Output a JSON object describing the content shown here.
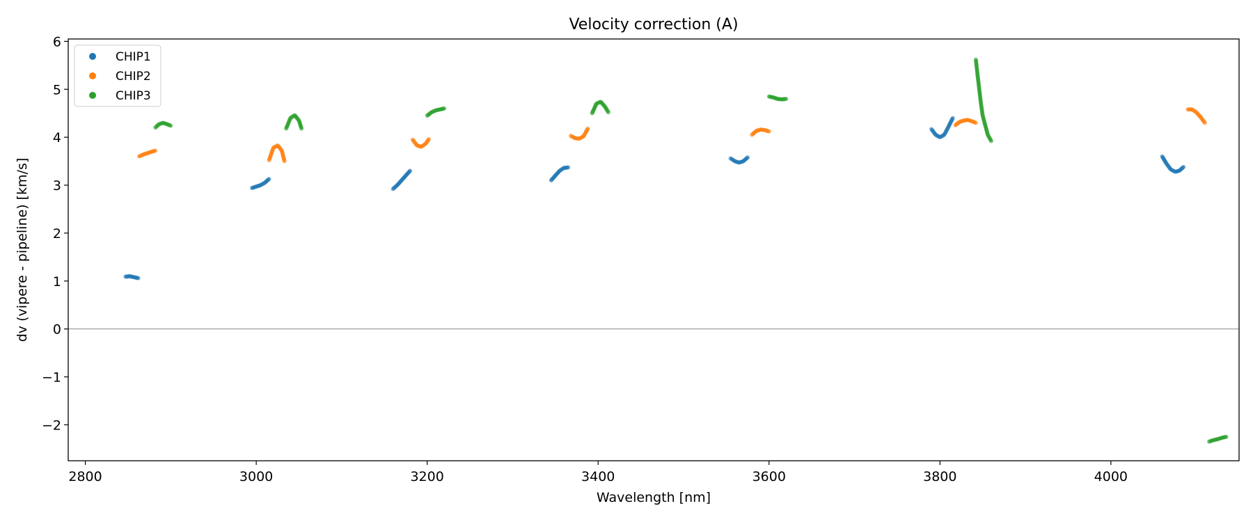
{
  "chart_data": {
    "type": "scatter",
    "title": "Velocity correction (A)",
    "xlabel": "Wavelength [nm]",
    "ylabel": "dv (vipere - pipeline) [km/s]",
    "xlim": [
      2780,
      4150
    ],
    "ylim": [
      -2.75,
      6.05
    ],
    "xticks": [
      2800,
      3000,
      3200,
      3400,
      3600,
      3800,
      4000
    ],
    "xtick_labels": [
      "2800",
      "3000",
      "3200",
      "3400",
      "3600",
      "3800",
      "4000"
    ],
    "yticks": [
      -2,
      -1,
      0,
      1,
      2,
      3,
      4,
      5,
      6
    ],
    "ytick_labels": [
      "−2",
      "−1",
      "0",
      "1",
      "2",
      "3",
      "4",
      "5",
      "6"
    ],
    "reference_line_y": 0,
    "grid": false,
    "legend_position": "top-left",
    "series": [
      {
        "name": "CHIP1",
        "color": "#1f77b4",
        "segments": [
          [
            [
              2847,
              1.09
            ],
            [
              2852,
              1.1
            ],
            [
              2857,
              1.08
            ],
            [
              2862,
              1.06
            ]
          ],
          [
            [
              2995,
              2.94
            ],
            [
              3000,
              2.97
            ],
            [
              3005,
              3.0
            ],
            [
              3010,
              3.05
            ],
            [
              3015,
              3.13
            ]
          ],
          [
            [
              3160,
              2.92
            ],
            [
              3165,
              3.0
            ],
            [
              3170,
              3.1
            ],
            [
              3175,
              3.2
            ],
            [
              3180,
              3.3
            ]
          ],
          [
            [
              3345,
              3.1
            ],
            [
              3350,
              3.2
            ],
            [
              3355,
              3.3
            ],
            [
              3360,
              3.36
            ],
            [
              3365,
              3.37
            ]
          ],
          [
            [
              3555,
              3.56
            ],
            [
              3560,
              3.5
            ],
            [
              3565,
              3.47
            ],
            [
              3570,
              3.5
            ],
            [
              3575,
              3.58
            ]
          ],
          [
            [
              3790,
              4.17
            ],
            [
              3795,
              4.05
            ],
            [
              3800,
              4.0
            ],
            [
              3805,
              4.05
            ],
            [
              3810,
              4.22
            ],
            [
              3815,
              4.4
            ]
          ],
          [
            [
              4060,
              3.6
            ],
            [
              4065,
              3.45
            ],
            [
              4070,
              3.33
            ],
            [
              4075,
              3.28
            ],
            [
              4080,
              3.3
            ],
            [
              4085,
              3.38
            ]
          ]
        ]
      },
      {
        "name": "CHIP2",
        "color": "#ff7f0e",
        "segments": [
          [
            [
              2863,
              3.6
            ],
            [
              2868,
              3.64
            ],
            [
              2873,
              3.67
            ],
            [
              2878,
              3.7
            ],
            [
              2882,
              3.72
            ]
          ],
          [
            [
              3015,
              3.52
            ],
            [
              3020,
              3.78
            ],
            [
              3025,
              3.83
            ],
            [
              3030,
              3.72
            ],
            [
              3033,
              3.5
            ]
          ],
          [
            [
              3183,
              3.95
            ],
            [
              3188,
              3.83
            ],
            [
              3193,
              3.8
            ],
            [
              3198,
              3.86
            ],
            [
              3202,
              3.96
            ]
          ],
          [
            [
              3368,
              4.03
            ],
            [
              3373,
              3.98
            ],
            [
              3378,
              3.97
            ],
            [
              3383,
              4.02
            ],
            [
              3388,
              4.18
            ]
          ],
          [
            [
              3580,
              4.05
            ],
            [
              3585,
              4.13
            ],
            [
              3590,
              4.16
            ],
            [
              3595,
              4.15
            ],
            [
              3600,
              4.12
            ]
          ],
          [
            [
              3818,
              4.25
            ],
            [
              3823,
              4.32
            ],
            [
              3828,
              4.35
            ],
            [
              3833,
              4.36
            ],
            [
              3838,
              4.33
            ],
            [
              3842,
              4.3
            ]
          ],
          [
            [
              4090,
              4.58
            ],
            [
              4095,
              4.58
            ],
            [
              4100,
              4.52
            ],
            [
              4105,
              4.42
            ],
            [
              4110,
              4.3
            ]
          ]
        ]
      },
      {
        "name": "CHIP3",
        "color": "#2ca02c",
        "segments": [
          [
            [
              2882,
              4.2
            ],
            [
              2886,
              4.27
            ],
            [
              2891,
              4.3
            ],
            [
              2896,
              4.27
            ],
            [
              2900,
              4.24
            ]
          ],
          [
            [
              3035,
              4.18
            ],
            [
              3040,
              4.4
            ],
            [
              3045,
              4.46
            ],
            [
              3050,
              4.35
            ],
            [
              3053,
              4.18
            ]
          ],
          [
            [
              3200,
              4.45
            ],
            [
              3205,
              4.52
            ],
            [
              3210,
              4.56
            ],
            [
              3215,
              4.58
            ],
            [
              3220,
              4.6
            ]
          ],
          [
            [
              3393,
              4.5
            ],
            [
              3398,
              4.7
            ],
            [
              3403,
              4.74
            ],
            [
              3408,
              4.64
            ],
            [
              3412,
              4.52
            ]
          ],
          [
            [
              3600,
              4.85
            ],
            [
              3605,
              4.83
            ],
            [
              3610,
              4.8
            ],
            [
              3615,
              4.79
            ],
            [
              3620,
              4.8
            ]
          ],
          [
            [
              3842,
              5.62
            ],
            [
              3844,
              5.3
            ],
            [
              3846,
              5.0
            ],
            [
              3848,
              4.7
            ],
            [
              3850,
              4.45
            ],
            [
              3853,
              4.25
            ],
            [
              3856,
              4.05
            ],
            [
              3860,
              3.92
            ]
          ],
          [
            [
              4115,
              -2.35
            ],
            [
              4120,
              -2.32
            ],
            [
              4125,
              -2.3
            ],
            [
              4130,
              -2.27
            ],
            [
              4135,
              -2.25
            ]
          ]
        ]
      }
    ]
  }
}
